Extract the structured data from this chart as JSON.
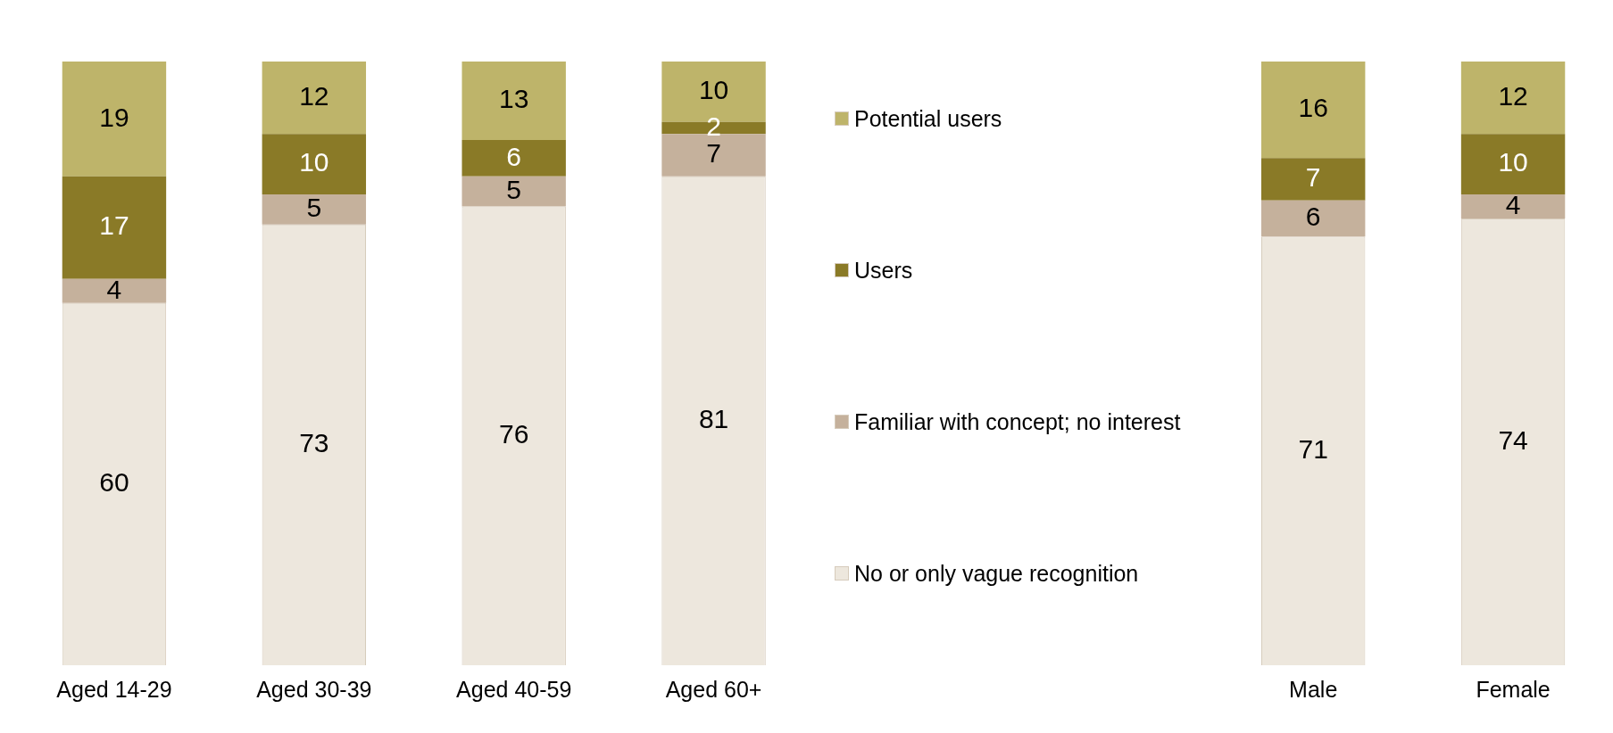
{
  "chart_data": {
    "type": "bar",
    "stacked": true,
    "data_labels": true,
    "legend": "center",
    "grid": false,
    "categories": [
      "Aged 14-29",
      "Aged 30-39",
      "Aged 40-59",
      "Aged 60+",
      null,
      null,
      "Male",
      "Female"
    ],
    "series": [
      {
        "name": "No or only vague recognition",
        "color": "#ede7dd",
        "values": [
          60,
          73,
          76,
          81,
          null,
          null,
          71,
          74
        ]
      },
      {
        "name": "Familiar with concept; no interest",
        "color": "#c5b19c",
        "values": [
          4,
          5,
          5,
          7,
          null,
          null,
          6,
          4
        ]
      },
      {
        "name": "Users",
        "color": "#8a7a27",
        "values": [
          17,
          10,
          6,
          2,
          null,
          null,
          7,
          10
        ]
      },
      {
        "name": "Potential users",
        "color": "#beb46a",
        "values": [
          19,
          12,
          13,
          10,
          null,
          null,
          16,
          12
        ]
      }
    ]
  }
}
